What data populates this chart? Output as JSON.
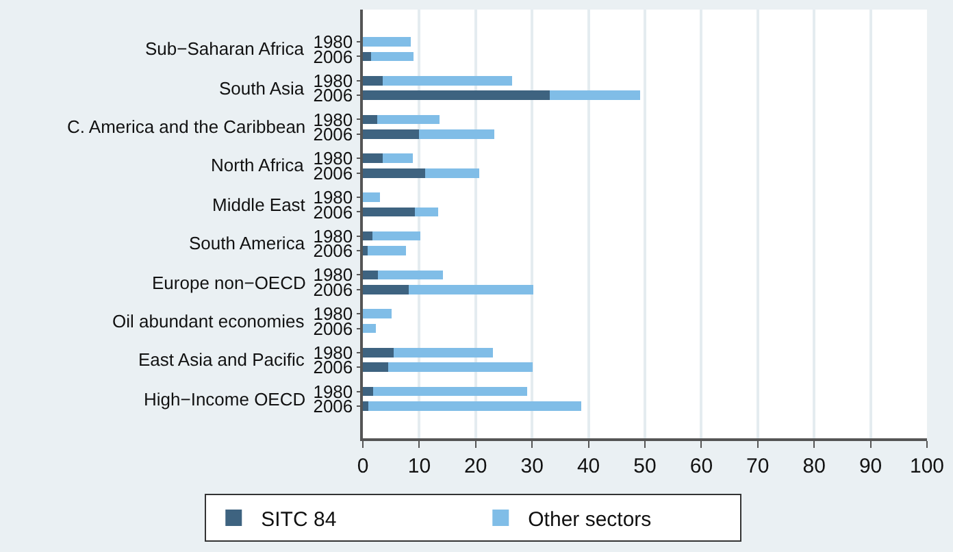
{
  "chart_data": {
    "type": "bar",
    "orientation": "horizontal",
    "stacked": true,
    "categories": [
      "1980",
      "2006",
      "1980",
      "2006",
      "1980",
      "2006",
      "1980",
      "2006",
      "1980",
      "2006",
      "1980",
      "2006",
      "1980",
      "2006",
      "1980",
      "2006",
      "1980",
      "2006",
      "1980",
      "2006"
    ],
    "annotations": [
      "Sub−Saharan Africa",
      "South Asia",
      "C. America and the Caribbean",
      "North Africa",
      "Middle East",
      "South America",
      "Europe non−OECD",
      "Oil abundant economies",
      "East Asia and Pacific",
      "High−Income OECD"
    ],
    "series": [
      {
        "name": "SITC 84",
        "color": "#3e6380",
        "values": [
          0,
          1.5,
          3.5,
          33.1,
          2.5,
          9.9,
          3.5,
          11.1,
          0,
          9.2,
          1.7,
          0.9,
          2.7,
          8.1,
          0,
          0,
          5.4,
          4.5,
          1.8,
          1.0
        ]
      },
      {
        "name": "Other sectors",
        "color": "#80bde7",
        "values": [
          8.5,
          7.5,
          23,
          16.1,
          11.1,
          13.4,
          5.4,
          9.5,
          3.0,
          4.2,
          8.5,
          6.7,
          11.5,
          22.1,
          5.1,
          2.3,
          17.7,
          25.6,
          27.3,
          37.7
        ]
      }
    ],
    "xlim": [
      0,
      100
    ],
    "xticks": [
      0,
      10,
      20,
      30,
      40,
      50,
      60,
      70,
      80,
      90,
      100
    ],
    "grid": "x",
    "legend": "bottom"
  }
}
